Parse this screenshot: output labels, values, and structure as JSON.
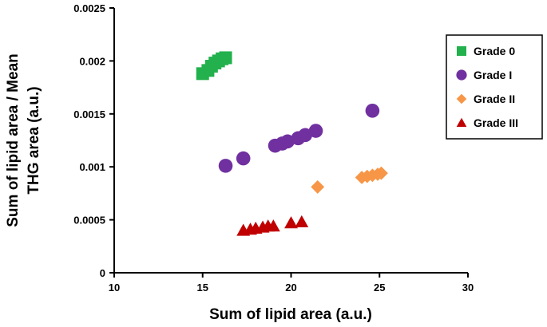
{
  "chart_data": {
    "type": "scatter",
    "xlabel": "Sum of lipid area (a.u.)",
    "ylabel_lines": [
      "Sum of lipid area / Mean",
      "THG area (a.u.)"
    ],
    "xlim": [
      10,
      30
    ],
    "ylim": [
      0,
      0.0025
    ],
    "x_ticks": [
      "10",
      "15",
      "20",
      "25",
      "30"
    ],
    "y_ticks": [
      "0",
      "0.0005",
      "0.001",
      "0.0015",
      "0.002",
      "0.0025"
    ],
    "grid": false,
    "legend_position": "top-right",
    "series": [
      {
        "name": "Grade 0",
        "marker": "square",
        "color": "#22b14c",
        "points": [
          [
            15.0,
            0.00188
          ],
          [
            15.3,
            0.00191
          ],
          [
            15.5,
            0.00195
          ],
          [
            15.7,
            0.00198
          ],
          [
            15.9,
            0.002
          ],
          [
            16.1,
            0.00202
          ],
          [
            16.3,
            0.00203
          ]
        ]
      },
      {
        "name": "Grade I",
        "marker": "circle",
        "color": "#7030a0",
        "points": [
          [
            16.3,
            0.00101
          ],
          [
            17.3,
            0.00108
          ],
          [
            19.1,
            0.0012
          ],
          [
            19.5,
            0.00122
          ],
          [
            19.8,
            0.00124
          ],
          [
            20.4,
            0.00127
          ],
          [
            20.8,
            0.0013
          ],
          [
            21.4,
            0.00134
          ],
          [
            24.6,
            0.00153
          ]
        ]
      },
      {
        "name": "Grade II",
        "marker": "diamond",
        "color": "#f79646",
        "points": [
          [
            21.5,
            0.00081
          ],
          [
            24.0,
            0.0009
          ],
          [
            24.3,
            0.00091
          ],
          [
            24.6,
            0.00092
          ],
          [
            24.9,
            0.00093
          ],
          [
            25.1,
            0.00094
          ]
        ]
      },
      {
        "name": "Grade III",
        "marker": "triangle",
        "color": "#c00000",
        "points": [
          [
            17.3,
            0.0004
          ],
          [
            17.7,
            0.00041
          ],
          [
            18.0,
            0.00042
          ],
          [
            18.4,
            0.00043
          ],
          [
            18.7,
            0.00044
          ],
          [
            19.0,
            0.00044
          ],
          [
            20.0,
            0.00047
          ],
          [
            20.6,
            0.00048
          ]
        ]
      }
    ]
  }
}
